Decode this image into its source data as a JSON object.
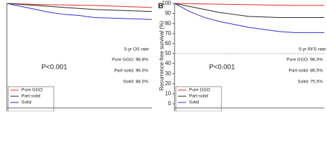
{
  "chart_data": [
    {
      "type": "line",
      "ylim": [
        0,
        100
      ],
      "xlim": [
        0,
        10
      ],
      "annotations": [
        "5-yr OS rate:",
        "Pure GGO: 98.8%",
        "Part-solid: 96.0%",
        "Solid: 88.0%"
      ],
      "p_value": "P<0.001",
      "series": [
        {
          "name": "Pure GGO",
          "color": "#e8261f",
          "x": [
            0,
            2,
            4,
            6,
            8,
            10
          ],
          "values": [
            100,
            99,
            98.5,
            98,
            97,
            96
          ]
        },
        {
          "name": "Part-solid",
          "color": "#222222",
          "x": [
            0,
            2,
            4,
            6,
            8,
            10
          ],
          "values": [
            100,
            98,
            96,
            94,
            93,
            92
          ]
        },
        {
          "name": "Solid",
          "color": "#2b2bd6",
          "x": [
            0,
            1,
            2,
            3,
            4,
            5,
            6,
            8,
            10
          ],
          "values": [
            100,
            97,
            94,
            91,
            89,
            88,
            86,
            85,
            84
          ]
        }
      ]
    },
    {
      "type": "line",
      "panel_label": "B",
      "y_label": "Recurrence-free survival (%)",
      "ylim": [
        0,
        100
      ],
      "yticks": [
        0,
        10,
        20,
        30,
        40,
        50,
        60,
        70,
        80,
        90,
        100
      ],
      "xlim": [
        0,
        10
      ],
      "reference_line": 50,
      "annotations": [
        "5-yr RFS rate:",
        "Pure GGO: 98.0%",
        "Part-solid: 86.5%",
        "Solid: 75.5%"
      ],
      "p_value": "P<0.001",
      "series": [
        {
          "name": "Pure GGO",
          "color": "#e8261f",
          "x": [
            0,
            2,
            4,
            6,
            8,
            10
          ],
          "values": [
            100,
            99.5,
            99,
            98.5,
            98,
            98
          ]
        },
        {
          "name": "Part-solid",
          "color": "#222222",
          "x": [
            0,
            1,
            2,
            3,
            4,
            5,
            6,
            7,
            8,
            10
          ],
          "values": [
            100,
            97,
            94,
            91,
            89,
            87,
            86.5,
            86,
            86,
            86
          ]
        },
        {
          "name": "Solid",
          "color": "#2b2bd6",
          "x": [
            0,
            0.5,
            1,
            2,
            3,
            4,
            5,
            6,
            7,
            8,
            10
          ],
          "values": [
            100,
            96,
            92,
            86,
            82,
            79,
            76,
            74,
            72,
            71,
            71
          ]
        }
      ]
    }
  ]
}
